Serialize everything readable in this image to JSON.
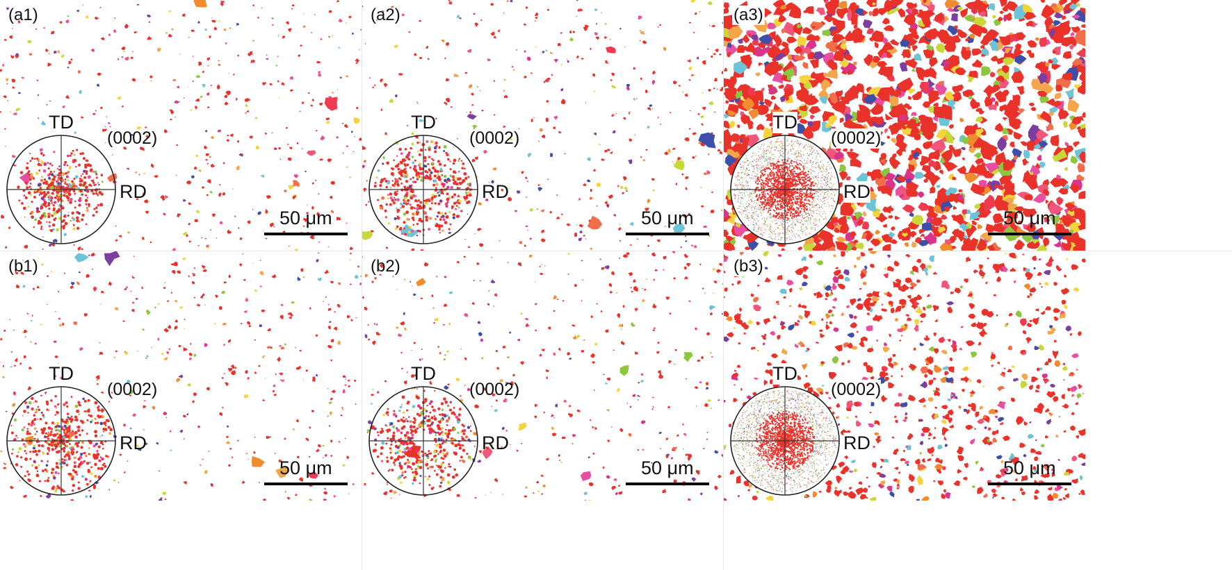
{
  "figure": {
    "panels": [
      {
        "id": "a1",
        "label": "(a1)",
        "density": "sparse",
        "seed": 11,
        "pf": "cluster"
      },
      {
        "id": "a2",
        "label": "(a2)",
        "density": "sparse",
        "seed": 23,
        "pf": "split"
      },
      {
        "id": "a3",
        "label": "(a3)",
        "density": "dense",
        "seed": 37,
        "pf": "dense"
      },
      {
        "id": "b1",
        "label": "(b1)",
        "density": "sparse",
        "seed": 49,
        "pf": "spread"
      },
      {
        "id": "b2",
        "label": "(b2)",
        "density": "sparse",
        "seed": 61,
        "pf": "split"
      },
      {
        "id": "b3",
        "label": "(b3)",
        "density": "medium",
        "seed": 73,
        "pf": "dense"
      }
    ],
    "pole_figure": {
      "td_label": "TD",
      "rd_label": "RD",
      "plane_label": "(0002)"
    },
    "scale_bar": {
      "label": "50 μm"
    },
    "colors": {
      "primary": "#e8322a",
      "palette": [
        "#e8322a",
        "#ef3b4f",
        "#f0567a",
        "#f28a2e",
        "#f5a54a",
        "#e94fa0",
        "#7b3fa0",
        "#3d4fa8",
        "#8dc63f",
        "#c8d83a",
        "#6fc3d6",
        "#f4d33c",
        "#d8348c",
        "#f06f4a"
      ]
    }
  }
}
